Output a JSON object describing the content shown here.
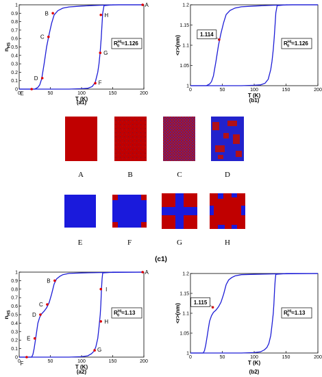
{
  "chart_data": [
    {
      "id": "a1",
      "type": "line",
      "caption": "(a1)",
      "xlabel": "T (K)",
      "ylabel": "n_HS",
      "ylabel_main": "n",
      "ylabel_sub": "HS",
      "xlim": [
        0,
        200
      ],
      "ylim": [
        0,
        1
      ],
      "xticks": [
        "0",
        "50",
        "100",
        "150",
        "200"
      ],
      "yticks": [
        "0",
        "0.1",
        "0.2",
        "0.3",
        "0.4",
        "0.5",
        "0.6",
        "0.7",
        "0.8",
        "0.9",
        "1"
      ],
      "annotation": {
        "main": "R",
        "sup": "HL",
        "sub": "0",
        "value": "=1.126"
      },
      "series": [
        {
          "x": [
            0,
            25,
            30,
            33,
            36,
            40,
            44,
            48,
            52,
            56,
            62,
            70,
            80,
            100,
            130,
            160,
            200
          ],
          "y": [
            0,
            0,
            0.02,
            0.05,
            0.12,
            0.3,
            0.5,
            0.65,
            0.78,
            0.88,
            0.93,
            0.96,
            0.975,
            0.985,
            0.995,
            1,
            1
          ]
        },
        {
          "x": [
            0,
            40,
            80,
            100,
            110,
            117,
            122,
            126,
            128,
            130,
            131.5,
            133,
            134,
            136,
            150,
            200
          ],
          "y": [
            0,
            0,
            0,
            0.005,
            0.01,
            0.03,
            0.08,
            0.2,
            0.3,
            0.45,
            0.6,
            0.78,
            0.9,
            0.99,
            1,
            1
          ]
        }
      ],
      "points": [
        {
          "label": "A",
          "x": 198,
          "y": 1.0
        },
        {
          "label": "B",
          "x": 54,
          "y": 0.9
        },
        {
          "label": "C",
          "x": 47,
          "y": 0.62
        },
        {
          "label": "D",
          "x": 37,
          "y": 0.13
        },
        {
          "label": "E",
          "x": 20,
          "y": 0.0
        },
        {
          "label": "F",
          "x": 122,
          "y": 0.07
        },
        {
          "label": "G",
          "x": 130,
          "y": 0.43
        },
        {
          "label": "H",
          "x": 131,
          "y": 0.88
        }
      ]
    },
    {
      "id": "b1",
      "type": "line",
      "caption": "(b1)",
      "xlabel": "T (K)",
      "ylabel": "<r>(nm)",
      "xlim": [
        0,
        200
      ],
      "ylim": [
        1,
        1.2
      ],
      "xticks": [
        "0",
        "50",
        "100",
        "150",
        "200"
      ],
      "yticks": [
        "1",
        "1.05",
        "1.1",
        "1.15",
        "1.2"
      ],
      "annotation": {
        "main": "R",
        "sup": "HL",
        "sub": "0",
        "value": "=1.126"
      },
      "callout": {
        "label": "1.114",
        "x": 45,
        "y": 1.114
      },
      "series": [
        {
          "x": [
            0,
            25,
            30,
            33,
            36,
            40,
            44,
            48,
            52,
            56,
            62,
            70,
            80,
            100,
            130,
            160,
            200
          ],
          "y": [
            1.0,
            1.0,
            1.004,
            1.01,
            1.024,
            1.06,
            1.1,
            1.13,
            1.156,
            1.176,
            1.186,
            1.192,
            1.195,
            1.197,
            1.199,
            1.2,
            1.2
          ]
        },
        {
          "x": [
            0,
            40,
            80,
            100,
            110,
            117,
            122,
            126,
            128,
            130,
            131.5,
            133,
            134,
            136,
            150,
            200
          ],
          "y": [
            1.0,
            1.0,
            1.0,
            1.001,
            1.002,
            1.006,
            1.016,
            1.04,
            1.06,
            1.09,
            1.12,
            1.156,
            1.18,
            1.198,
            1.2,
            1.2
          ]
        }
      ]
    },
    {
      "id": "a2",
      "type": "line",
      "caption": "(a2)",
      "xlabel": "T (K)",
      "ylabel": "n_HS",
      "ylabel_main": "n",
      "ylabel_sub": "HS",
      "xlim": [
        0,
        200
      ],
      "ylim": [
        0,
        1
      ],
      "xticks": [
        "0",
        "50",
        "100",
        "150",
        "200"
      ],
      "yticks": [
        "0",
        "0.1",
        "0.2",
        "0.3",
        "0.4",
        "0.5",
        "0.6",
        "0.7",
        "0.8",
        "0.9",
        "1"
      ],
      "annotation": {
        "main": "R",
        "sup": "HL",
        "sub": "0",
        "value": "=1.13"
      },
      "series": [
        {
          "x": [
            0,
            20,
            22,
            24,
            26,
            28,
            30,
            33,
            36,
            40,
            44,
            48,
            52,
            56,
            60,
            65,
            70,
            80,
            100,
            130,
            200
          ],
          "y": [
            0,
            0,
            0.03,
            0.1,
            0.2,
            0.3,
            0.4,
            0.47,
            0.51,
            0.54,
            0.58,
            0.64,
            0.74,
            0.86,
            0.92,
            0.95,
            0.97,
            0.985,
            0.99,
            0.995,
            1
          ]
        },
        {
          "x": [
            0,
            40,
            80,
            100,
            110,
            116,
            120,
            123,
            126,
            128,
            130,
            131,
            132,
            133,
            134,
            150,
            200
          ],
          "y": [
            0,
            0,
            0,
            0.005,
            0.015,
            0.04,
            0.07,
            0.12,
            0.22,
            0.35,
            0.5,
            0.62,
            0.8,
            0.92,
            0.99,
            1,
            1
          ]
        }
      ],
      "points": [
        {
          "label": "A",
          "x": 198,
          "y": 1.0
        },
        {
          "label": "B",
          "x": 57,
          "y": 0.9
        },
        {
          "label": "C",
          "x": 45,
          "y": 0.62
        },
        {
          "label": "D",
          "x": 34,
          "y": 0.5
        },
        {
          "label": "E",
          "x": 25,
          "y": 0.22
        },
        {
          "label": "F",
          "x": 12,
          "y": 0.0
        },
        {
          "label": "G",
          "x": 121,
          "y": 0.08
        },
        {
          "label": "H",
          "x": 131,
          "y": 0.42
        },
        {
          "label": "I",
          "x": 131,
          "y": 0.8
        }
      ]
    },
    {
      "id": "b2",
      "type": "line",
      "caption": "(b2)",
      "xlabel": "T (K)",
      "ylabel": "<r>(nm)",
      "xlim": [
        0,
        200
      ],
      "ylim": [
        1,
        1.2
      ],
      "xticks": [
        "0",
        "50",
        "100",
        "150",
        "200"
      ],
      "yticks": [
        "1",
        "1.05",
        "1.1",
        "1.15",
        "1.2"
      ],
      "annotation": {
        "main": "R",
        "sup": "HL",
        "sub": "0",
        "value": "=1.13"
      },
      "callout": {
        "label": "1.115",
        "x": 35,
        "y": 1.115
      },
      "series": [
        {
          "x": [
            0,
            20,
            22,
            24,
            26,
            28,
            30,
            33,
            36,
            40,
            44,
            48,
            52,
            56,
            60,
            65,
            70,
            80,
            100,
            130,
            200
          ],
          "y": [
            1.0,
            1.0,
            1.006,
            1.02,
            1.04,
            1.06,
            1.08,
            1.094,
            1.102,
            1.108,
            1.116,
            1.128,
            1.148,
            1.172,
            1.184,
            1.19,
            1.194,
            1.197,
            1.198,
            1.199,
            1.2
          ]
        },
        {
          "x": [
            0,
            40,
            80,
            100,
            110,
            116,
            120,
            123,
            126,
            128,
            130,
            131,
            132,
            133,
            134,
            150,
            200
          ],
          "y": [
            1.0,
            1.0,
            1.0,
            1.001,
            1.003,
            1.008,
            1.014,
            1.024,
            1.044,
            1.07,
            1.1,
            1.124,
            1.16,
            1.184,
            1.198,
            1.2,
            1.2
          ]
        }
      ]
    }
  ],
  "snapshots": {
    "caption": "(c1)",
    "items": [
      {
        "label": "A",
        "pattern": "red"
      },
      {
        "label": "B",
        "pattern": "red-speckle"
      },
      {
        "label": "C",
        "pattern": "mixed-fine"
      },
      {
        "label": "D",
        "pattern": "blue-red-domains"
      },
      {
        "label": "E",
        "pattern": "blue"
      },
      {
        "label": "F",
        "pattern": "blue-red-corners"
      },
      {
        "label": "G",
        "pattern": "red-corners-blue-cross"
      },
      {
        "label": "H",
        "pattern": "red-blue-center"
      }
    ],
    "colors": {
      "hs": "#c00000",
      "ls": "#1a1adc"
    }
  },
  "colors": {
    "curve": "#1c1cd6",
    "marker": "#e00000",
    "axis": "#000000"
  }
}
